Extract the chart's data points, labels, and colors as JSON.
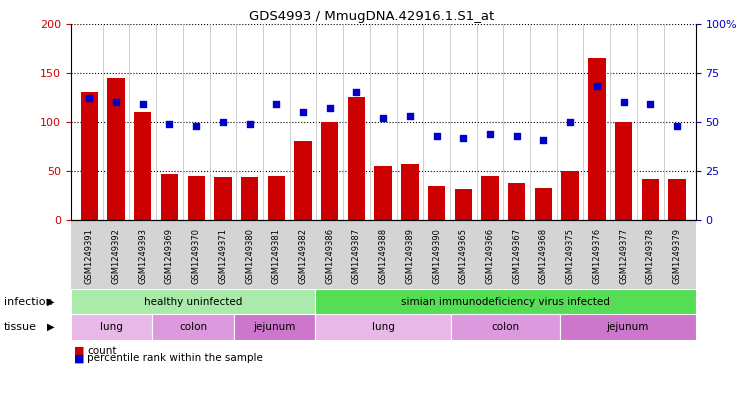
{
  "title": "GDS4993 / MmugDNA.42916.1.S1_at",
  "samples": [
    "GSM1249391",
    "GSM1249392",
    "GSM1249393",
    "GSM1249369",
    "GSM1249370",
    "GSM1249371",
    "GSM1249380",
    "GSM1249381",
    "GSM1249382",
    "GSM1249386",
    "GSM1249387",
    "GSM1249388",
    "GSM1249389",
    "GSM1249390",
    "GSM1249365",
    "GSM1249366",
    "GSM1249367",
    "GSM1249368",
    "GSM1249375",
    "GSM1249376",
    "GSM1249377",
    "GSM1249378",
    "GSM1249379"
  ],
  "counts": [
    130,
    145,
    110,
    47,
    45,
    44,
    44,
    45,
    80,
    100,
    125,
    55,
    57,
    35,
    32,
    45,
    38,
    33,
    50,
    165,
    100,
    42,
    42
  ],
  "percentiles": [
    62,
    60,
    59,
    49,
    48,
    50,
    49,
    59,
    55,
    57,
    65,
    52,
    53,
    43,
    42,
    44,
    43,
    41,
    50,
    68,
    60,
    59,
    48
  ],
  "bar_color": "#cc0000",
  "dot_color": "#0000cc",
  "ylim_left": [
    0,
    200
  ],
  "ylim_right": [
    0,
    100
  ],
  "yticks_left": [
    0,
    50,
    100,
    150,
    200
  ],
  "yticks_right": [
    0,
    25,
    50,
    75,
    100
  ],
  "infection_groups": [
    {
      "label": "healthy uninfected",
      "start": 0,
      "end": 9,
      "color": "#aaeaaa"
    },
    {
      "label": "simian immunodeficiency virus infected",
      "start": 9,
      "end": 23,
      "color": "#55dd55"
    }
  ],
  "tissue_groups": [
    {
      "label": "lung",
      "start": 0,
      "end": 3,
      "color": "#e8b8e8"
    },
    {
      "label": "colon",
      "start": 3,
      "end": 6,
      "color": "#dd99dd"
    },
    {
      "label": "jejunum",
      "start": 6,
      "end": 9,
      "color": "#cc77cc"
    },
    {
      "label": "lung",
      "start": 9,
      "end": 14,
      "color": "#e8b8e8"
    },
    {
      "label": "colon",
      "start": 14,
      "end": 18,
      "color": "#dd99dd"
    },
    {
      "label": "jejunum",
      "start": 18,
      "end": 23,
      "color": "#cc77cc"
    }
  ],
  "legend_count_label": "count",
  "legend_pct_label": "percentile rank within the sample",
  "infection_label": "infection",
  "tissue_label": "tissue",
  "xtick_bg_color": "#d4d4d4",
  "plot_bg": "#ffffff"
}
